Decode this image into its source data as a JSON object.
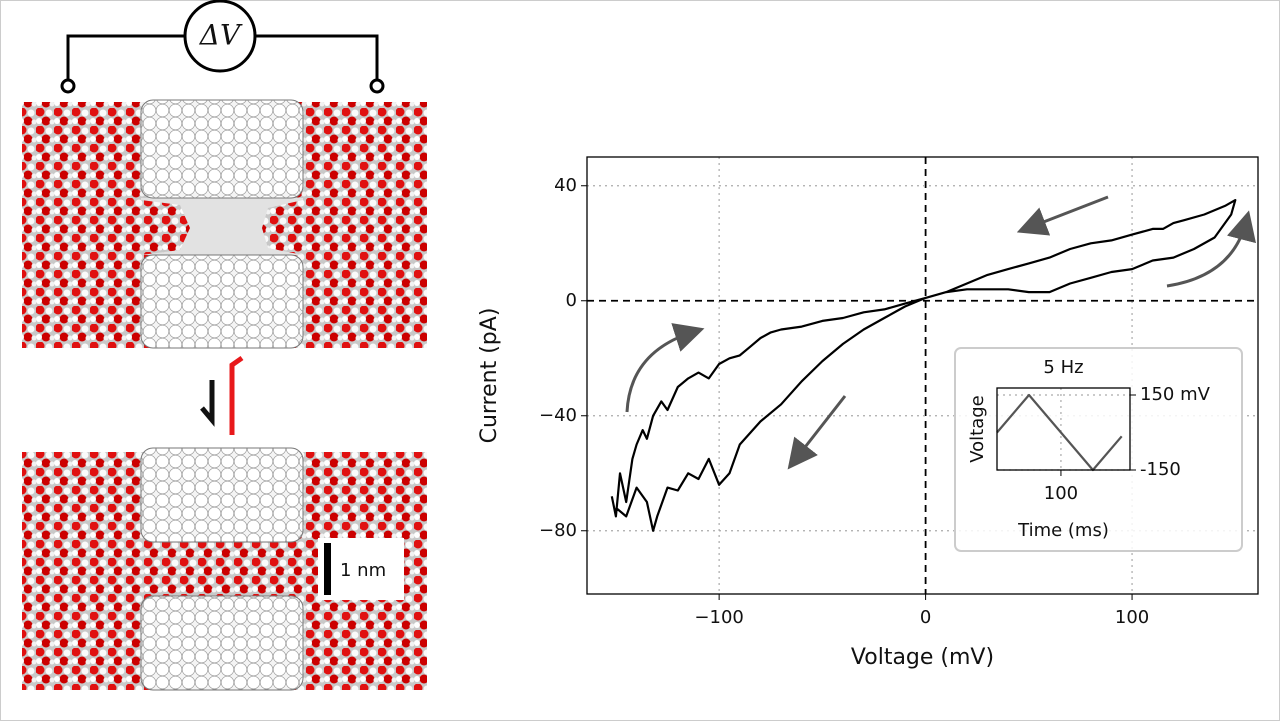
{
  "figure": {
    "potential_label": "ΔV",
    "scale_bar_label": "1 nm"
  },
  "chart_data": [
    {
      "type": "line",
      "xlabel": "Voltage (mV)",
      "ylabel": "Current (pA)",
      "x": [
        -152,
        -150,
        -148,
        -145,
        -142,
        -140,
        -137,
        -135,
        -132,
        -128,
        -125,
        -120,
        -115,
        -110,
        -105,
        -100,
        -95,
        -90,
        -85,
        -80,
        -75,
        -70,
        -60,
        -50,
        -40,
        -30,
        -20,
        -10,
        0,
        10,
        20,
        30,
        40,
        50,
        60,
        70,
        80,
        90,
        100,
        110,
        120,
        130,
        140,
        148,
        150,
        145,
        135,
        125,
        120,
        115,
        110,
        100,
        90,
        80,
        70,
        60,
        50,
        40,
        30,
        20,
        10,
        0,
        -10,
        -20,
        -30,
        -40,
        -50,
        -60,
        -70,
        -80,
        -90,
        -95,
        -100,
        -105,
        -110,
        -115,
        -120,
        -125,
        -130,
        -132,
        -135,
        -140,
        -145,
        -150
      ],
      "series": [
        {
          "color": "#000000",
          "values": [
            -68,
            -75,
            -60,
            -70,
            -55,
            -50,
            -45,
            -48,
            -40,
            -35,
            -38,
            -30,
            -27,
            -25,
            -27,
            -22,
            -20,
            -19,
            -16,
            -13,
            -11,
            -10,
            -9,
            -7,
            -6,
            -4,
            -3,
            -1,
            1,
            3,
            4,
            4,
            4,
            3,
            3,
            6,
            8,
            10,
            11,
            14,
            15,
            18,
            22,
            30,
            35,
            33,
            30,
            28,
            27,
            25,
            25,
            23,
            21,
            20,
            18,
            15,
            13,
            11,
            9,
            6,
            3,
            1,
            -2,
            -6,
            -10,
            -15,
            -21,
            -28,
            -36,
            -42,
            -50,
            -60,
            -64,
            -55,
            -62,
            -60,
            -66,
            -65,
            -75,
            -80,
            -70,
            -65,
            -75,
            -72
          ]
        }
      ],
      "xlim": [
        -164,
        161
      ],
      "ylim": [
        -102,
        50
      ],
      "xticks": [
        {
          "value": -100,
          "label": "−100"
        },
        0,
        100
      ],
      "yticks": [
        {
          "value": -80,
          "label": "−80"
        },
        {
          "value": -40,
          "label": "−40"
        },
        0,
        40
      ],
      "grid": true
    },
    {
      "type": "line",
      "title": "5 Hz",
      "xlabel": "Time (ms)",
      "ylabel": "Voltage",
      "x": [
        0,
        50,
        150,
        195
      ],
      "series": [
        {
          "color": "#555555",
          "values": [
            0,
            150,
            -150,
            -15
          ]
        }
      ],
      "xlim": [
        0,
        208
      ],
      "ylim": [
        -150,
        178
      ],
      "xticks": [
        100
      ],
      "yticks": [
        {
          "value": 150,
          "label": "150 mV"
        },
        -150
      ],
      "grid": true
    }
  ]
}
